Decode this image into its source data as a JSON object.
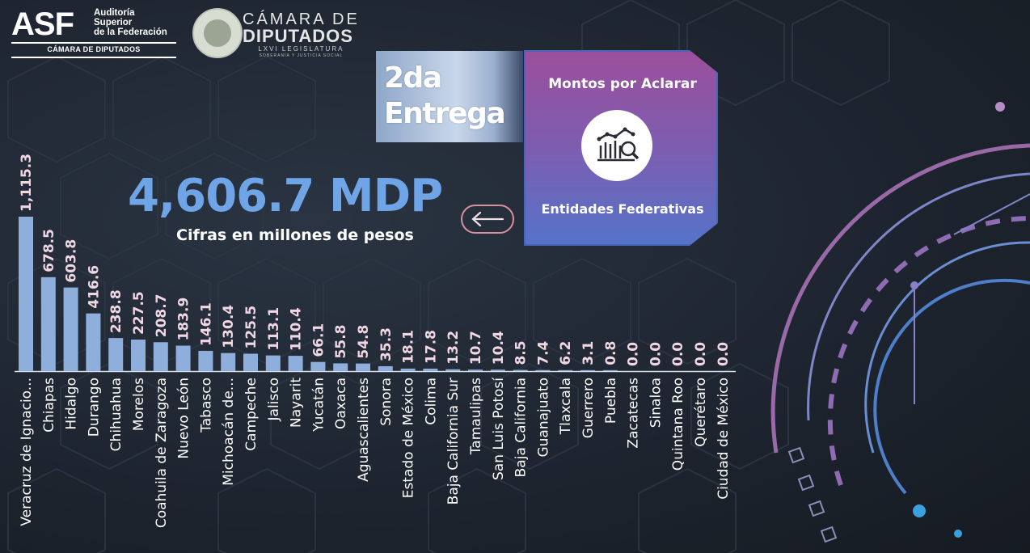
{
  "logos": {
    "asf": "ASF",
    "asf_line1": "Auditoría",
    "asf_line2": "Superior",
    "asf_line3": "de la Federación",
    "asf_camara": "CÁMARA DE DIPUTADOS",
    "camara_line1": "CÁMARA DE",
    "camara_line2": "DIPUTADOS",
    "camara_line3": "LXVI LEGISLATURA",
    "camara_line4": "SOBERANÍA Y JUSTICIA SOCIAL"
  },
  "entrega": {
    "line1": "2da",
    "line2": "Entrega"
  },
  "card": {
    "title": "Montos por Aclarar",
    "subtitle": "Entidades Federativas",
    "icon": "chart-magnifier-icon"
  },
  "total": {
    "value": "4,606.7 MDP",
    "subtitle": "Cifras en millones de pesos"
  },
  "back_button": {
    "icon": "arrow-left-icon"
  },
  "colors": {
    "bar": "#8eaedb",
    "total": "#6fa4e6",
    "value_label": "#f1d7e4"
  },
  "chart_data": {
    "type": "bar",
    "categories": [
      "Veracruz de Ignacio...",
      "Chiapas",
      "Hidalgo",
      "Durango",
      "Chihuahua",
      "Morelos",
      "Coahuila de Zaragoza",
      "Nuevo León",
      "Tabasco",
      "Michoacán de...",
      "Campeche",
      "Jalisco",
      "Nayarit",
      "Yucatán",
      "Oaxaca",
      "Aguascalientes",
      "Sonora",
      "Estado de México",
      "Colima",
      "Baja California Sur",
      "Tamaulipas",
      "San Luis Potosí",
      "Baja California",
      "Guanajuato",
      "Tlaxcala",
      "Guerrero",
      "Puebla",
      "Zacatecas",
      "Sinaloa",
      "Quintana Roo",
      "Querétaro",
      "Ciudad de México"
    ],
    "values": [
      1115.3,
      678.5,
      603.8,
      416.6,
      238.8,
      227.5,
      208.7,
      183.9,
      146.1,
      130.4,
      125.5,
      113.1,
      110.4,
      66.1,
      55.8,
      54.8,
      35.3,
      18.1,
      17.8,
      13.2,
      10.7,
      10.4,
      8.5,
      7.4,
      6.2,
      3.1,
      0.8,
      0.0,
      0.0,
      0.0,
      0.0,
      0.0
    ],
    "value_labels": [
      "1,115.3",
      "678.5",
      "603.8",
      "416.6",
      "238.8",
      "227.5",
      "208.7",
      "183.9",
      "146.1",
      "130.4",
      "125.5",
      "113.1",
      "110.4",
      "66.1",
      "55.8",
      "54.8",
      "35.3",
      "18.1",
      "17.8",
      "13.2",
      "10.7",
      "10.4",
      "8.5",
      "7.4",
      "6.2",
      "3.1",
      "0.8",
      "0.0",
      "0.0",
      "0.0",
      "0.0",
      "0.0"
    ],
    "ylim": [
      0,
      1115.3
    ],
    "grid": false,
    "legend": "none"
  }
}
